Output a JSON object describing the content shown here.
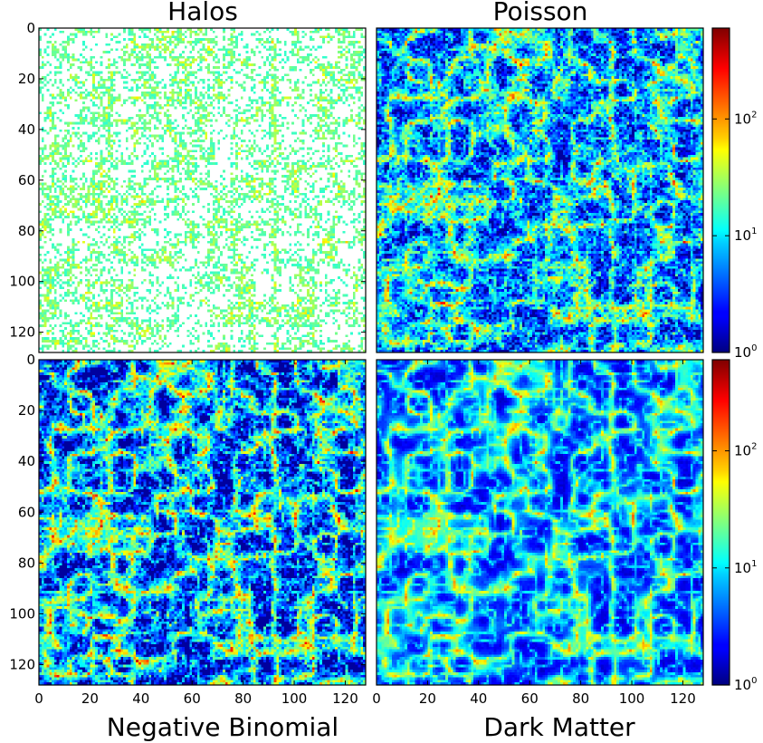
{
  "chart_data": [
    {
      "type": "heatmap",
      "title": "Halos",
      "xlabel": "",
      "ylabel": "",
      "xlim": [
        0,
        128
      ],
      "ylim": [
        128,
        0
      ],
      "xticks": [],
      "yticks": [
        "0",
        "20",
        "40",
        "60",
        "80",
        "100",
        "120"
      ],
      "colormap": "jet",
      "color_scale": "log",
      "zero_cells": "white",
      "occupancy": 0.55
    },
    {
      "type": "heatmap",
      "title": "Poisson",
      "xlabel": "",
      "ylabel": "",
      "xlim": [
        0,
        128
      ],
      "ylim": [
        128,
        0
      ],
      "xticks": [],
      "yticks": [],
      "colormap": "jet",
      "color_scale": "log",
      "colorbar": {
        "range": [
          1,
          600
        ],
        "ticks": [
          {
            "base": "10",
            "exp": "0"
          },
          {
            "base": "10",
            "exp": "1"
          },
          {
            "base": "10",
            "exp": "2"
          }
        ]
      }
    },
    {
      "type": "heatmap",
      "title": "Negative Binomial",
      "title_position": "bottom",
      "xlim": [
        0,
        128
      ],
      "ylim": [
        128,
        0
      ],
      "xticks": [
        "0",
        "20",
        "40",
        "60",
        "80",
        "100",
        "120"
      ],
      "yticks": [
        "0",
        "20",
        "40",
        "60",
        "80",
        "100",
        "120"
      ],
      "colormap": "jet",
      "color_scale": "log"
    },
    {
      "type": "heatmap",
      "title": "Dark Matter",
      "title_position": "bottom",
      "xlim": [
        0,
        128
      ],
      "ylim": [
        128,
        0
      ],
      "xticks": [
        "0",
        "20",
        "40",
        "60",
        "80",
        "100",
        "120"
      ],
      "yticks": [],
      "colormap": "jet",
      "color_scale": "log",
      "colorbar": {
        "range": [
          1,
          600
        ],
        "ticks": [
          {
            "base": "10",
            "exp": "0"
          },
          {
            "base": "10",
            "exp": "1"
          },
          {
            "base": "10",
            "exp": "2"
          }
        ]
      }
    }
  ]
}
